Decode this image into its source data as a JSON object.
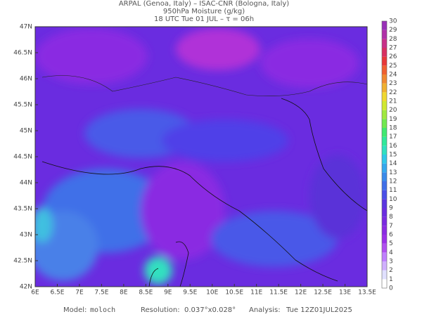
{
  "header": {
    "line1": "ARPAL (Genoa, Italy)  –  ISAC-CNR (Bologna, Italy)",
    "line2": "950hPa Moisture (g/kg)",
    "line3": "18 UTC Tue 01 JUL  –  τ = 06h"
  },
  "map": {
    "lat_labels": [
      "47N",
      "46.5N",
      "46N",
      "45.5N",
      "45N",
      "44.5N",
      "44N",
      "43.5N",
      "43N",
      "42.5N",
      "42N"
    ],
    "lon_labels": [
      "6E",
      "6.5E",
      "7E",
      "7.5E",
      "8E",
      "8.5E",
      "9E",
      "9.5E",
      "10E",
      "10.5E",
      "11E",
      "11.5E",
      "12E",
      "12.5E",
      "13E",
      "13.5E"
    ]
  },
  "colorbar": {
    "levels": [
      30,
      29,
      28,
      27,
      26,
      25,
      24,
      23,
      22,
      21,
      20,
      19,
      18,
      17,
      16,
      15,
      14,
      13,
      12,
      11,
      10,
      9,
      8,
      7,
      6,
      5,
      4,
      3,
      2,
      1,
      0
    ]
  },
  "footer": {
    "model_label": "Model:",
    "model": "moloch",
    "resolution_label": "Resolution:",
    "resolution": "0.037°x0.028°",
    "analysis_label": "Analysis:",
    "analysis": "Tue 12Z01JUL2025"
  }
}
